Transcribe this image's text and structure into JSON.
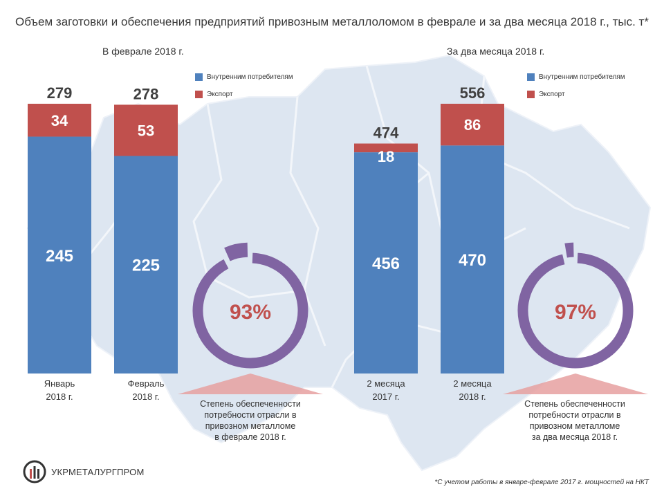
{
  "title": "Объем заготовки и обеспечения предприятий привозным металлоломом в феврале и за два месяца 2018 г., тыс. т*",
  "colors": {
    "domestic": "#4f81bd",
    "export": "#c0504d",
    "ring": "#8064a2",
    "percent_text": "#c0504d",
    "triangle": "#e6a0a0",
    "map": "#dbe4f0"
  },
  "chart_data": [
    {
      "type": "bar",
      "stacked": true,
      "section_label": "В феврале 2018 г.",
      "categories": [
        [
          "Январь",
          "2018 г."
        ],
        [
          "Февраль",
          "2018 г."
        ]
      ],
      "series": [
        {
          "name": "Внутренним потребителям",
          "values": [
            245,
            225
          ]
        },
        {
          "name": "Экспорт",
          "values": [
            34,
            53
          ]
        }
      ],
      "totals": [
        279,
        278
      ],
      "ylim": [
        0,
        279
      ],
      "legend": "top-right"
    },
    {
      "type": "bar",
      "stacked": true,
      "section_label": "За два месяца 2018 г.",
      "categories": [
        [
          "2 месяца",
          "2017 г."
        ],
        [
          "2 месяца",
          "2018 г."
        ]
      ],
      "series": [
        {
          "name": "Внутренним потребителям",
          "values": [
            456,
            470
          ]
        },
        {
          "name": "Экспорт",
          "values": [
            18,
            86
          ]
        }
      ],
      "totals": [
        474,
        556
      ],
      "ylim": [
        0,
        556
      ],
      "legend": "top-right"
    }
  ],
  "rings": [
    {
      "value": 93,
      "label": "93%",
      "caption": [
        "Степень обеспеченности",
        "потребности отрасли в",
        "привозном металломе",
        "в феврале 2018 г."
      ]
    },
    {
      "value": 97,
      "label": "97%",
      "caption": [
        "Степень обеспеченности",
        "потребности отрасли в",
        "привозном металломе",
        "за два месяца 2018 г."
      ]
    }
  ],
  "legends": [
    {
      "domestic_label": "Внутренним потребителям",
      "export_label": "Экспорт"
    },
    {
      "domestic_label": "Внутренним потребителям",
      "export_label": "Экспорт"
    }
  ],
  "logo_text": "УКРМЕТАЛУРГПРОМ",
  "footnote": "*С учетом работы в январе-феврале  2017  г. мощностей на НКТ"
}
